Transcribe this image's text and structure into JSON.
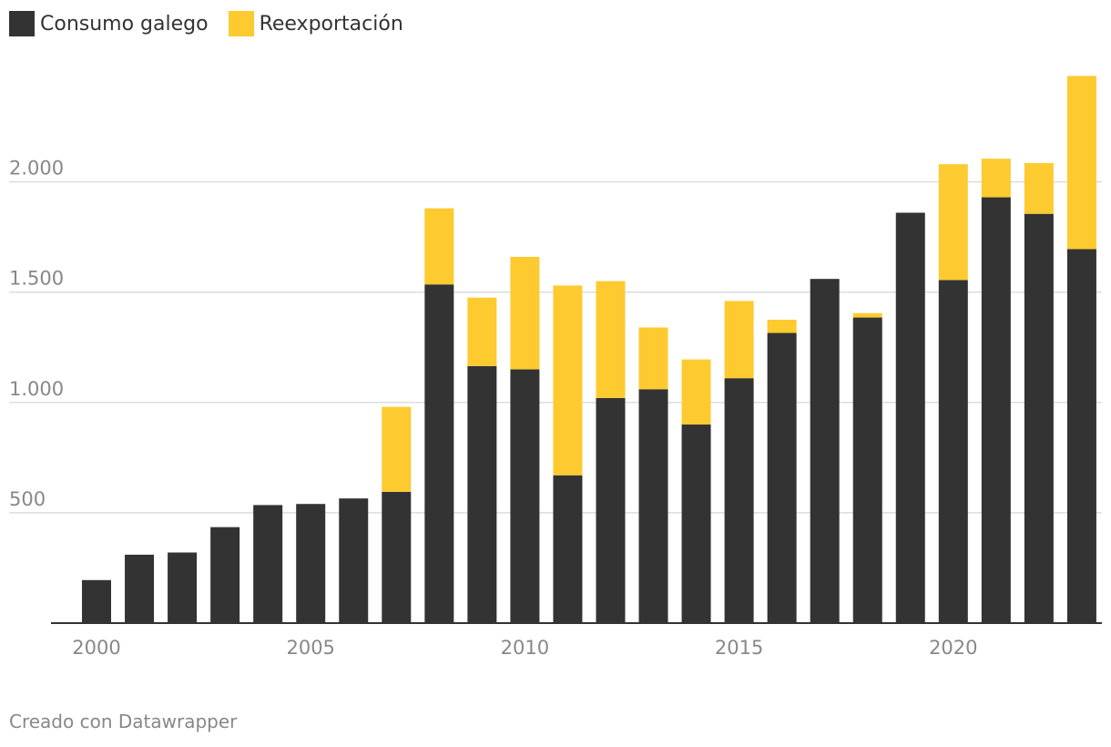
{
  "legend": {
    "series_a": "Consumo galego",
    "series_b": "Reexportación"
  },
  "colors": {
    "consumo": "#333333",
    "reexport": "#fdca30",
    "grid": "#dddddd",
    "axis": "#333333",
    "tick_text": "#888888"
  },
  "footer": {
    "credit": "Creado con Datawrapper"
  },
  "chart_data": {
    "type": "bar",
    "stacked": true,
    "title": "",
    "xlabel": "",
    "ylabel": "",
    "ylim": [
      0,
      2500
    ],
    "yticks": [
      500,
      1000,
      1500,
      2000
    ],
    "ytick_labels": [
      "500",
      "1.000",
      "1.500",
      "2.000"
    ],
    "xticks": [
      2000,
      2005,
      2010,
      2015,
      2020
    ],
    "categories": [
      2000,
      2001,
      2002,
      2003,
      2004,
      2005,
      2006,
      2007,
      2008,
      2009,
      2010,
      2011,
      2012,
      2013,
      2014,
      2015,
      2016,
      2017,
      2018,
      2019,
      2020,
      2021,
      2022,
      2023
    ],
    "series": [
      {
        "name": "Consumo galego",
        "values": [
          195,
          310,
          320,
          435,
          535,
          540,
          565,
          595,
          1535,
          1165,
          1150,
          670,
          1020,
          1060,
          900,
          1110,
          1315,
          1560,
          1385,
          1860,
          1555,
          1930,
          1855,
          1695
        ]
      },
      {
        "name": "Reexportación",
        "values": [
          0,
          0,
          0,
          0,
          0,
          0,
          0,
          385,
          345,
          310,
          510,
          860,
          530,
          280,
          295,
          350,
          60,
          0,
          20,
          0,
          525,
          175,
          230,
          785
        ]
      }
    ]
  }
}
